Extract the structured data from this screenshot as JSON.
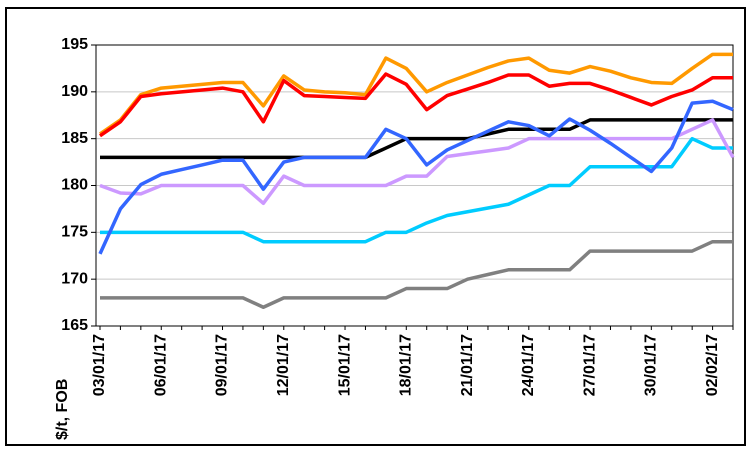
{
  "chart_data": {
    "type": "line",
    "y_label": "$/t, FOB",
    "categories": [
      "03/01/17",
      null,
      null,
      "06/01/17",
      null,
      null,
      "09/01/17",
      null,
      null,
      "12/01/17",
      null,
      null,
      "15/01/17",
      null,
      null,
      "18/01/17",
      null,
      null,
      "21/01/17",
      null,
      null,
      "24/01/17",
      null,
      null,
      "27/01/17",
      null,
      null,
      "30/01/17",
      null,
      null,
      "02/02/17",
      null
    ],
    "series": [
      {
        "color": "#000000",
        "values": [
          183,
          183,
          183,
          183,
          183,
          183,
          183,
          183,
          183,
          183,
          183,
          183,
          183,
          183,
          184,
          185,
          185,
          185,
          185,
          185.5,
          186,
          186,
          186,
          186,
          187,
          187,
          187,
          187,
          187,
          187,
          187,
          187
        ]
      },
      {
        "color": "#808080",
        "values": [
          168,
          168,
          168,
          168,
          168,
          168,
          168,
          168,
          167,
          168,
          168,
          168,
          168,
          168,
          168,
          169,
          169,
          169,
          170,
          170.5,
          171,
          171,
          171,
          171,
          173,
          173,
          173,
          173,
          173,
          173,
          174,
          174
        ]
      },
      {
        "color": "#00ccff",
        "values": [
          175,
          175,
          175,
          175,
          175,
          175,
          175,
          175,
          174,
          174,
          174,
          174,
          174,
          174,
          175,
          175,
          176,
          176.8,
          177.2,
          177.6,
          178,
          179,
          180,
          180,
          182,
          182,
          182,
          182,
          182,
          185,
          184,
          184
        ]
      },
      {
        "color": "#cc99ff",
        "values": [
          180,
          179.2,
          179.1,
          180,
          180,
          180,
          180,
          180,
          178.1,
          181,
          180,
          180,
          180,
          180,
          180,
          181,
          181,
          183.1,
          183.4,
          183.7,
          184,
          185,
          185,
          185,
          185,
          185,
          185,
          185,
          185,
          186,
          187,
          183
        ]
      },
      {
        "color": "#3366ff",
        "values": [
          172.7,
          177.5,
          180.1,
          181.2,
          181.7,
          182.2,
          182.7,
          182.7,
          179.6,
          182.5,
          183,
          183,
          183,
          183,
          186,
          185,
          182.2,
          183.8,
          184.8,
          185.8,
          186.8,
          186.4,
          185.3,
          187.1,
          185.9,
          184.5,
          183,
          181.5,
          184,
          188.8,
          189,
          188.1
        ]
      },
      {
        "color": "#ff9900",
        "values": [
          185.5,
          187,
          189.7,
          190.4,
          190.6,
          190.8,
          191,
          191,
          188.5,
          191.7,
          190.2,
          190,
          189.9,
          189.7,
          193.6,
          192.5,
          190,
          191,
          191.8,
          192.6,
          193.3,
          193.6,
          192.3,
          192,
          192.7,
          192.2,
          191.5,
          191,
          190.9,
          192.5,
          194,
          194
        ]
      },
      {
        "color": "#ff0000",
        "values": [
          185.3,
          186.8,
          189.5,
          189.8,
          190,
          190.2,
          190.4,
          190,
          186.8,
          191.2,
          189.6,
          189.5,
          189.4,
          189.3,
          191.9,
          190.8,
          188.1,
          189.6,
          190.3,
          191,
          191.8,
          191.8,
          190.6,
          190.9,
          190.9,
          190.2,
          189.4,
          188.6,
          189.5,
          190.2,
          191.5,
          191.5
        ]
      }
    ],
    "ylim": [
      165,
      195
    ],
    "yticks": [
      165,
      170,
      175,
      180,
      185,
      190,
      195
    ],
    "grid": true
  }
}
